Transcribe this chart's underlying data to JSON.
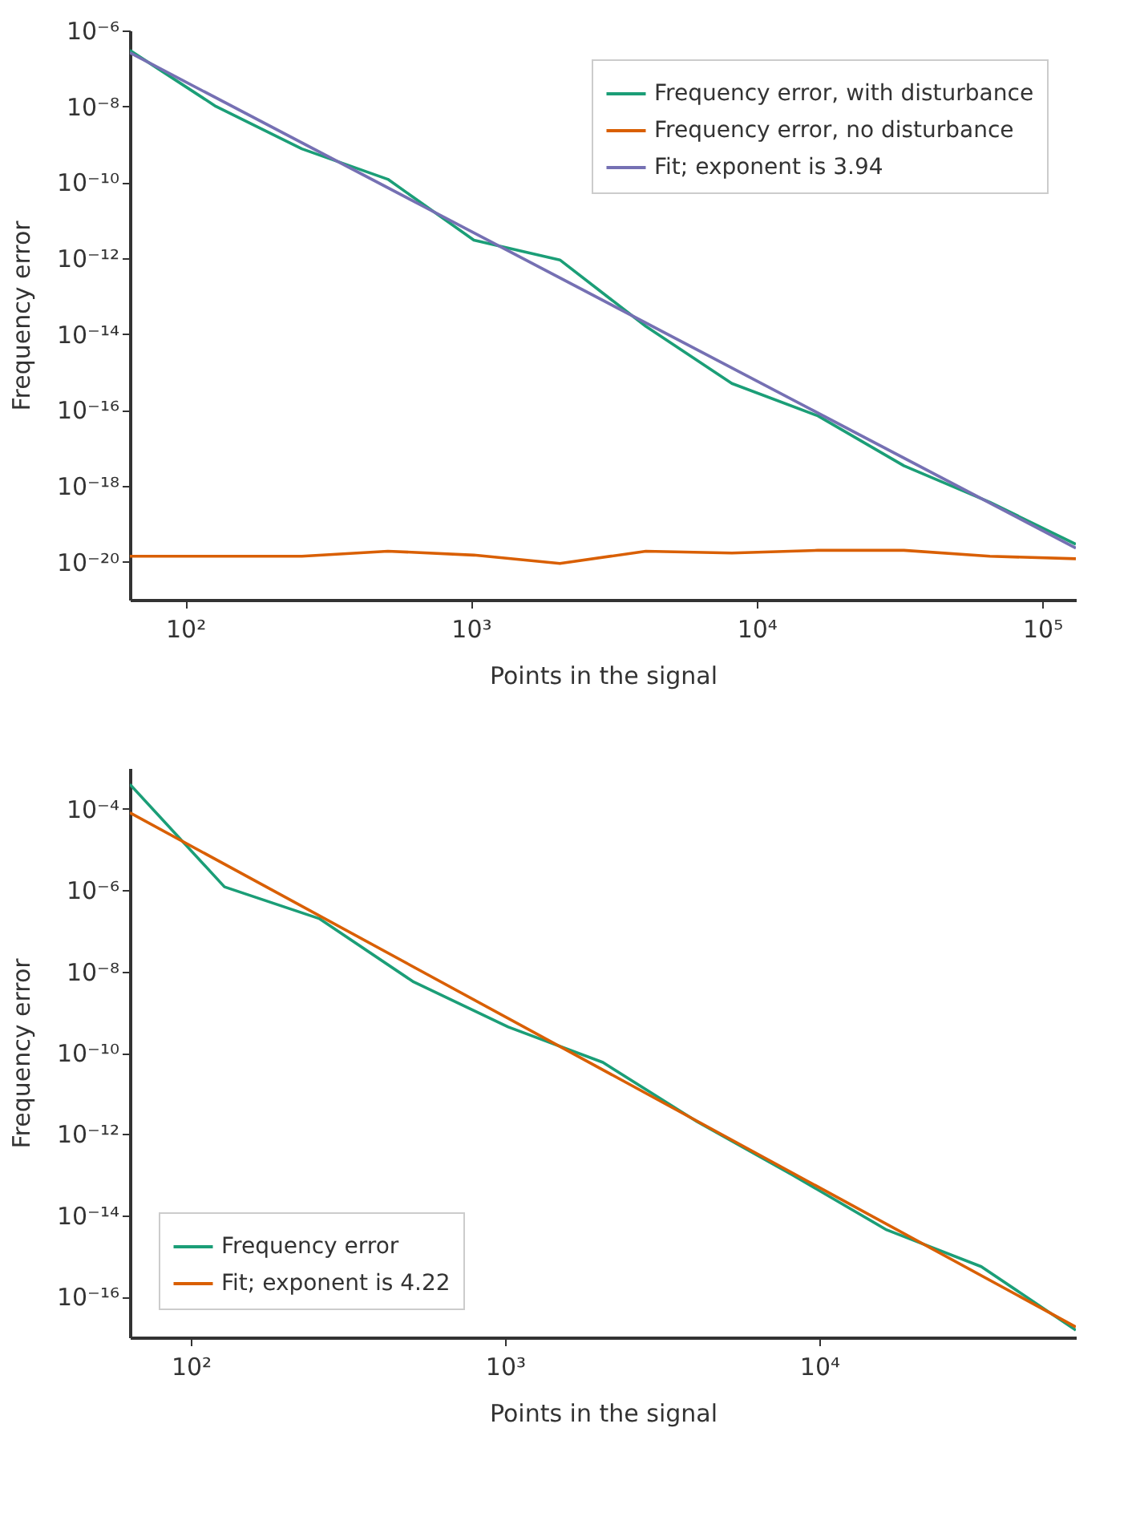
{
  "chart_data": [
    {
      "type": "line",
      "xlabel": "Points in the signal",
      "ylabel": "Frequency error",
      "log": "xy",
      "grid": false,
      "legend": "top right",
      "line_style": "solid",
      "x": [
        64,
        128,
        256,
        512,
        1024,
        2048,
        4096,
        8192,
        16384,
        32768,
        65536,
        131072
      ],
      "xlim": [
        64,
        131072
      ],
      "ylim": [
        1e-21,
        1e-06
      ],
      "xticks": [
        {
          "value": 100,
          "label": "10²"
        },
        {
          "value": 1000,
          "label": "10³"
        },
        {
          "value": 10000,
          "label": "10⁴"
        },
        {
          "value": 100000,
          "label": "10⁵"
        }
      ],
      "yticks": [
        {
          "value": 1e-06,
          "label": "10⁻⁶"
        },
        {
          "value": 1e-08,
          "label": "10⁻⁸"
        },
        {
          "value": 1e-10,
          "label": "10⁻¹⁰"
        },
        {
          "value": 1e-12,
          "label": "10⁻¹²"
        },
        {
          "value": 1e-14,
          "label": "10⁻¹⁴"
        },
        {
          "value": 1e-16,
          "label": "10⁻¹⁶"
        },
        {
          "value": 1e-18,
          "label": "10⁻¹⁸"
        },
        {
          "value": 1e-20,
          "label": "10⁻²⁰"
        }
      ],
      "series": [
        {
          "name": "Frequency error, with disturbance",
          "color": "#1b9e77",
          "values": [
            3e-07,
            1e-08,
            7.6e-10,
            1.2e-10,
            3e-12,
            9e-13,
            1.6e-14,
            5e-16,
            7e-17,
            3.4e-18,
            3.7e-19,
            2.9e-20
          ]
        },
        {
          "name": "Frequency error, no disturbance",
          "color": "#d95f02",
          "values": [
            1.4e-20,
            1.4e-20,
            1.4e-20,
            1.9e-20,
            1.5e-20,
            9e-21,
            1.9e-20,
            1.7e-20,
            2e-20,
            2e-20,
            1.4e-20,
            1.2e-20
          ]
        },
        {
          "name": "Fit; exponent is 3.94",
          "color": "#7570b3",
          "x": [
            64,
            131072
          ],
          "values": [
            2.6e-07,
            2.3e-20
          ]
        }
      ]
    },
    {
      "type": "line",
      "xlabel": "Points in the signal",
      "ylabel": "Frequency error",
      "log": "xy",
      "grid": false,
      "legend": "bottom left",
      "line_style": "solid",
      "x": [
        64,
        128,
        256,
        512,
        1024,
        2048,
        4096,
        8192,
        16384,
        32768,
        65536
      ],
      "xlim": [
        64,
        65536
      ],
      "ylim": [
        1e-17,
        0.001
      ],
      "xticks": [
        {
          "value": 100,
          "label": "10²"
        },
        {
          "value": 1000,
          "label": "10³"
        },
        {
          "value": 10000,
          "label": "10⁴"
        }
      ],
      "yticks": [
        {
          "value": 0.0001,
          "label": "10⁻⁴"
        },
        {
          "value": 1e-06,
          "label": "10⁻⁶"
        },
        {
          "value": 1e-08,
          "label": "10⁻⁸"
        },
        {
          "value": 1e-10,
          "label": "10⁻¹⁰"
        },
        {
          "value": 1e-12,
          "label": "10⁻¹²"
        },
        {
          "value": 1e-14,
          "label": "10⁻¹⁴"
        },
        {
          "value": 1e-16,
          "label": "10⁻¹⁶"
        }
      ],
      "series": [
        {
          "name": "Frequency error",
          "color": "#1b9e77",
          "values": [
            0.0004,
            1.2e-06,
            2e-07,
            5.5e-09,
            4.3e-10,
            5.8e-11,
            2e-12,
            1e-13,
            4.4e-15,
            5.5e-16,
            1.5e-17
          ]
        },
        {
          "name": "Fit; exponent is 4.22",
          "color": "#d95f02",
          "x": [
            64,
            65536
          ],
          "values": [
            8e-05,
            1.8e-17
          ]
        }
      ]
    }
  ]
}
